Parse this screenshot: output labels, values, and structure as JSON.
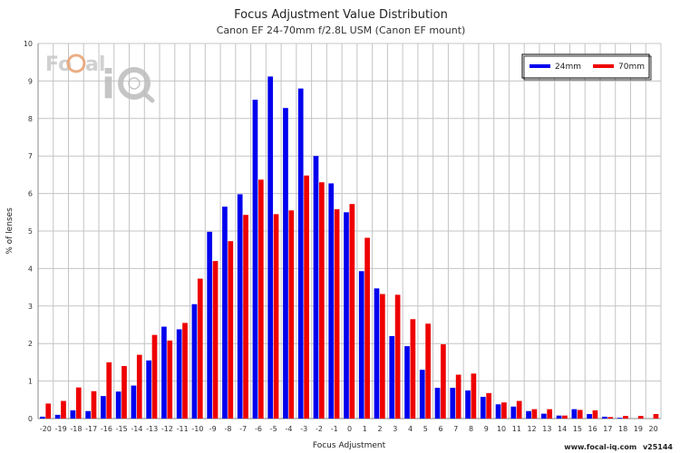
{
  "chart_data": {
    "type": "bar",
    "title": "Focus Adjustment Value Distribution",
    "subtitle": "Canon EF 24-70mm f/2.8L USM (Canon EF mount)",
    "xlabel": "Focus Adjustment",
    "ylabel": "% of lenses",
    "ylim": [
      0,
      10
    ],
    "yticks": [
      0,
      1,
      2,
      3,
      4,
      5,
      6,
      7,
      8,
      9,
      10
    ],
    "grid": true,
    "legend_position": "top-right",
    "categories": [
      "-20",
      "-19",
      "-18",
      "-17",
      "-16",
      "-15",
      "-14",
      "-13",
      "-12",
      "-11",
      "-10",
      "-9",
      "-8",
      "-7",
      "-6",
      "-5",
      "-4",
      "-3",
      "-2",
      "-1",
      "0",
      "1",
      "2",
      "3",
      "4",
      "5",
      "6",
      "7",
      "8",
      "9",
      "10",
      "11",
      "12",
      "13",
      "14",
      "15",
      "16",
      "17",
      "18",
      "19",
      "20"
    ],
    "series": [
      {
        "name": "24mm",
        "color": "#0000ee",
        "values": [
          0.05,
          0.1,
          0.22,
          0.2,
          0.6,
          0.72,
          0.88,
          1.55,
          2.45,
          2.38,
          3.05,
          4.98,
          5.65,
          5.98,
          8.5,
          9.12,
          8.28,
          8.8,
          7.0,
          6.27,
          5.5,
          3.93,
          3.47,
          2.2,
          1.93,
          1.3,
          0.82,
          0.82,
          0.75,
          0.58,
          0.38,
          0.32,
          0.2,
          0.13,
          0.08,
          0.25,
          0.12,
          0.05,
          0.02,
          0.0,
          0.0
        ]
      },
      {
        "name": "70mm",
        "color": "#ee0000",
        "values": [
          0.4,
          0.47,
          0.83,
          0.73,
          1.5,
          1.4,
          1.7,
          2.23,
          2.08,
          2.55,
          3.73,
          4.2,
          4.73,
          5.43,
          6.37,
          5.45,
          5.55,
          6.48,
          6.3,
          5.58,
          5.72,
          4.82,
          3.32,
          3.3,
          2.65,
          2.53,
          1.98,
          1.17,
          1.2,
          0.68,
          0.43,
          0.47,
          0.25,
          0.25,
          0.08,
          0.23,
          0.22,
          0.04,
          0.07,
          0.07,
          0.12
        ]
      }
    ]
  },
  "watermark": {
    "logo_text": "FoCal",
    "logo_icon": "iq-magnifier-logo"
  },
  "footer": {
    "url": "www.focal-iq.com",
    "version": "v25144"
  }
}
